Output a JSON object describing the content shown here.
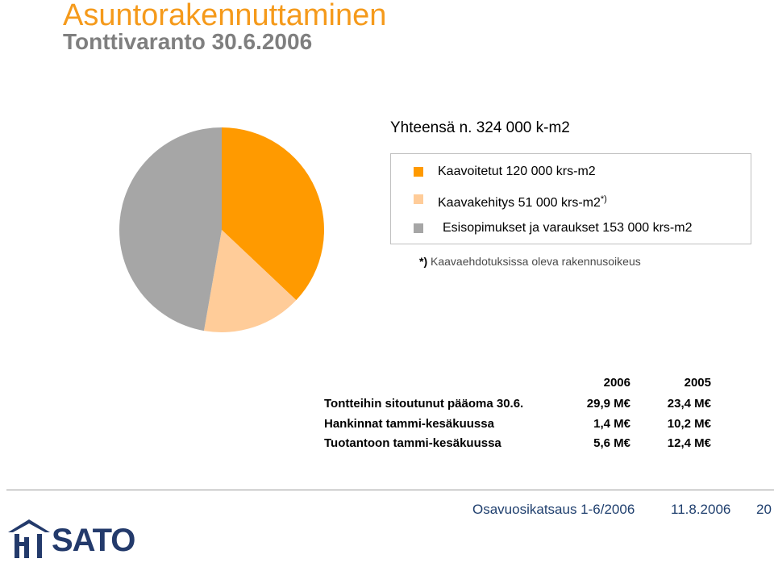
{
  "header": {
    "title": "Asuntorakennuttaminen",
    "subtitle": "Tonttivaranto 30.6.2006"
  },
  "summary": {
    "total": "Yhteensä n. 324 000 k-m2"
  },
  "chart_data": {
    "type": "pie",
    "title": "",
    "slices": [
      {
        "label": "Kaavoitetut 120 000 krs-m2",
        "value": 120000,
        "color": "#ff9a00"
      },
      {
        "label": "Kaavakehitys 51 000 krs-m2",
        "value": 51000,
        "color": "#ffcc99"
      },
      {
        "label": "Esisopimukset ja varaukset 153 000 krs-m2",
        "value": 153000,
        "color": "#a6a6a6"
      }
    ],
    "legend_position": "right",
    "legend_footnote_marker": "*)"
  },
  "legend": {
    "items": [
      {
        "label": "Kaavoitetut 120 000 krs-m2",
        "marker": ""
      },
      {
        "label": "Kaavakehitys 51 000 krs-m2",
        "marker": "*)"
      },
      {
        "label": "Esisopimukset ja varaukset 153 000 krs-m2",
        "marker": ""
      }
    ]
  },
  "note": {
    "marker": "*)",
    "text": "Kaavaehdotuksissa oleva rakennusoikeus"
  },
  "financials": {
    "headers": [
      "2006",
      "2005"
    ],
    "rows": [
      {
        "label": "Tontteihin sitoutunut pääoma 30.6.",
        "v2006": "29,9 M€",
        "v2005": "23,4 M€"
      },
      {
        "label": "Hankinnat tammi-kesäkuussa",
        "v2006": "1,4 M€",
        "v2005": "10,2 M€"
      },
      {
        "label": "Tuotantoon tammi-kesäkuussa",
        "v2006": "5,6 M€",
        "v2005": "12,4 M€"
      }
    ]
  },
  "footer": {
    "document": "Osavuosikatsaus 1-6/2006",
    "date": "11.8.2006",
    "page": "20",
    "logo_text": "SATO"
  }
}
